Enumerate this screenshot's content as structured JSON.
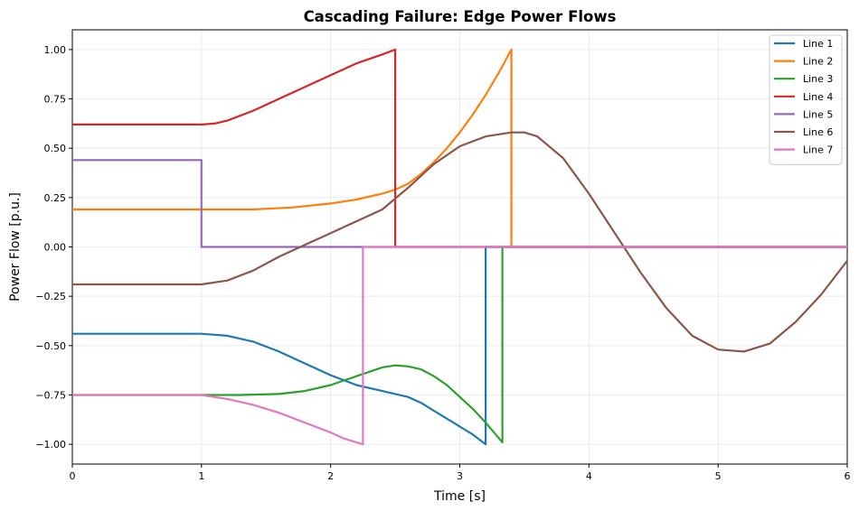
{
  "chart_data": {
    "type": "line",
    "title": "Cascading Failure: Edge Power Flows",
    "xlabel": "Time [s]",
    "ylabel": "Power Flow [p.u.]",
    "xlim": [
      0,
      6
    ],
    "ylim": [
      -1.1,
      1.1
    ],
    "xticks": [
      0,
      1,
      2,
      3,
      4,
      5,
      6
    ],
    "xtick_labels": [
      "0",
      "1",
      "2",
      "3",
      "4",
      "5",
      "6"
    ],
    "yticks": [
      -1.0,
      -0.75,
      -0.5,
      -0.25,
      0.0,
      0.25,
      0.5,
      0.75,
      1.0
    ],
    "ytick_labels": [
      "−1.00",
      "−0.75",
      "−0.50",
      "−0.25",
      "0.00",
      "0.25",
      "0.50",
      "0.75",
      "1.00"
    ],
    "grid": true,
    "legend_position": "top-right",
    "series": [
      {
        "name": "Line 1",
        "color": "#1f77b4",
        "x": [
          0,
          1.0,
          1.2,
          1.4,
          1.6,
          1.8,
          2.0,
          2.2,
          2.4,
          2.5,
          2.6,
          2.7,
          2.8,
          2.9,
          3.0,
          3.1,
          3.2,
          3.2,
          6.0
        ],
        "y": [
          -0.44,
          -0.44,
          -0.45,
          -0.48,
          -0.53,
          -0.59,
          -0.65,
          -0.7,
          -0.73,
          -0.745,
          -0.76,
          -0.79,
          -0.83,
          -0.87,
          -0.91,
          -0.95,
          -1.0,
          0.0,
          0.0
        ]
      },
      {
        "name": "Line 2",
        "color": "#ff7f0e",
        "x": [
          0,
          1.0,
          1.4,
          1.7,
          2.0,
          2.2,
          2.4,
          2.5,
          2.6,
          2.7,
          2.8,
          2.9,
          3.0,
          3.1,
          3.2,
          3.3,
          3.4,
          3.4,
          6.0
        ],
        "y": [
          0.19,
          0.19,
          0.19,
          0.2,
          0.22,
          0.24,
          0.27,
          0.29,
          0.32,
          0.37,
          0.43,
          0.5,
          0.58,
          0.67,
          0.77,
          0.88,
          1.0,
          0.0,
          0.0
        ]
      },
      {
        "name": "Line 3",
        "color": "#2ca02c",
        "x": [
          0,
          1.0,
          1.3,
          1.6,
          1.8,
          2.0,
          2.2,
          2.4,
          2.5,
          2.6,
          2.7,
          2.8,
          2.9,
          3.0,
          3.1,
          3.2,
          3.33,
          3.33,
          6.0
        ],
        "y": [
          -0.75,
          -0.75,
          -0.75,
          -0.745,
          -0.73,
          -0.7,
          -0.655,
          -0.61,
          -0.6,
          -0.605,
          -0.62,
          -0.655,
          -0.7,
          -0.76,
          -0.82,
          -0.89,
          -0.99,
          0.0,
          0.0
        ]
      },
      {
        "name": "Line 4",
        "color": "#d62728",
        "x": [
          0,
          1.0,
          1.1,
          1.2,
          1.4,
          1.6,
          1.8,
          2.0,
          2.2,
          2.4,
          2.5,
          2.5,
          6.0
        ],
        "y": [
          0.62,
          0.62,
          0.625,
          0.64,
          0.69,
          0.75,
          0.81,
          0.87,
          0.93,
          0.975,
          1.0,
          0.0,
          0.0
        ]
      },
      {
        "name": "Line 5",
        "color": "#9467bd",
        "x": [
          0,
          1.0,
          1.0,
          6.0
        ],
        "y": [
          0.44,
          0.44,
          0.0,
          0.0
        ]
      },
      {
        "name": "Line 6",
        "color": "#8c564b",
        "x": [
          0,
          1.0,
          1.2,
          1.4,
          1.6,
          1.8,
          2.0,
          2.2,
          2.4,
          2.6,
          2.8,
          3.0,
          3.2,
          3.4,
          3.5,
          3.6,
          3.8,
          4.0,
          4.2,
          4.4,
          4.6,
          4.8,
          5.0,
          5.2,
          5.4,
          5.6,
          5.8,
          6.0
        ],
        "y": [
          -0.19,
          -0.19,
          -0.17,
          -0.12,
          -0.05,
          0.01,
          0.07,
          0.13,
          0.19,
          0.3,
          0.42,
          0.51,
          0.56,
          0.58,
          0.58,
          0.56,
          0.45,
          0.27,
          0.07,
          -0.13,
          -0.31,
          -0.45,
          -0.52,
          -0.53,
          -0.49,
          -0.38,
          -0.24,
          -0.07
        ]
      },
      {
        "name": "Line 7",
        "color": "#e377c2",
        "x": [
          0,
          1.0,
          1.2,
          1.4,
          1.6,
          1.8,
          2.0,
          2.1,
          2.2,
          2.25,
          2.25,
          6.0
        ],
        "y": [
          -0.75,
          -0.75,
          -0.77,
          -0.8,
          -0.84,
          -0.89,
          -0.94,
          -0.97,
          -0.99,
          -1.0,
          0.0,
          0.0
        ]
      }
    ]
  }
}
